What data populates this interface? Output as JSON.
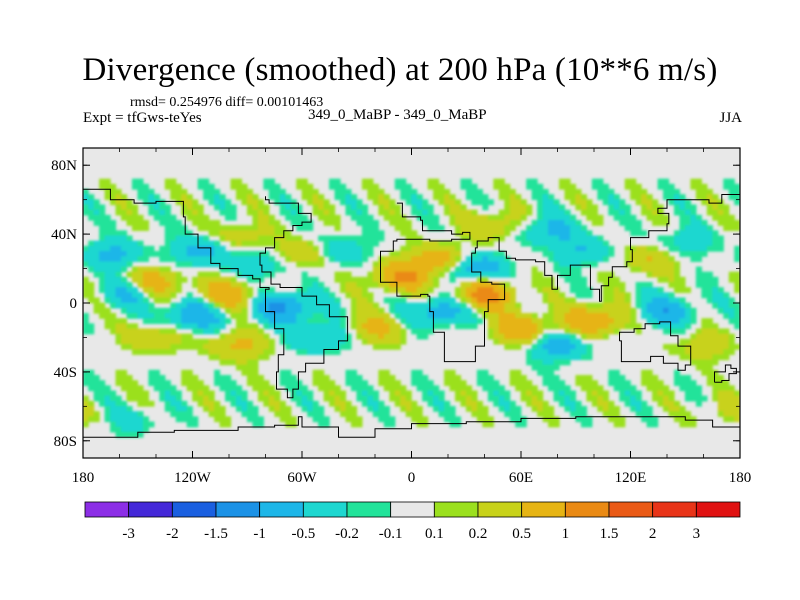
{
  "chart_data": {
    "type": "heatmap",
    "title": "Divergence (smoothed) at 200 hPa (10**6 m/s)",
    "stats_text": "rmsd= 0.254976 diff= 0.00101463",
    "experiment_text": "Expt = tfGws-teYes",
    "case_text": "349_0_MaBP - 349_0_MaBP",
    "season": "JJA",
    "units": "10**6 m/s",
    "xlim": [
      -180,
      180
    ],
    "ylim": [
      -90,
      90
    ],
    "x_ticks": [
      {
        "value": -180,
        "label": "180"
      },
      {
        "value": -120,
        "label": "120W"
      },
      {
        "value": -60,
        "label": "60W"
      },
      {
        "value": 0,
        "label": "0"
      },
      {
        "value": 60,
        "label": "60E"
      },
      {
        "value": 120,
        "label": "120E"
      },
      {
        "value": 180,
        "label": "180"
      }
    ],
    "y_ticks": [
      {
        "value": 80,
        "label": "80N"
      },
      {
        "value": 40,
        "label": "40N"
      },
      {
        "value": 0,
        "label": "0"
      },
      {
        "value": -40,
        "label": "40S"
      },
      {
        "value": -80,
        "label": "80S"
      }
    ],
    "colorbar": {
      "colors": [
        "#8c2ee6",
        "#4428d8",
        "#1a5fe0",
        "#1c92e6",
        "#1db6e8",
        "#1ed7d0",
        "#22e39a",
        "#e8e8e8",
        "#9be01e",
        "#c8d21a",
        "#e6b414",
        "#ea8a14",
        "#ea5a16",
        "#e83418",
        "#e01212"
      ],
      "labels": [
        "-3",
        "-2",
        "-1.5",
        "-1",
        "-0.5",
        "-0.2",
        "-0.1",
        "0.1",
        "0.2",
        "0.5",
        "1",
        "1.5",
        "2",
        "3"
      ]
    },
    "field_features": [
      {
        "lon": -163,
        "lat": 28,
        "value": -0.6
      },
      {
        "lon": -140,
        "lat": 12,
        "value": 0.7
      },
      {
        "lon": -155,
        "lat": 5,
        "value": -0.5
      },
      {
        "lon": -115,
        "lat": 30,
        "value": -0.7
      },
      {
        "lon": -95,
        "lat": 38,
        "value": 0.4
      },
      {
        "lon": -80,
        "lat": 22,
        "value": -0.5
      },
      {
        "lon": -60,
        "lat": 28,
        "value": 0.6
      },
      {
        "lon": -40,
        "lat": 30,
        "value": -0.5
      },
      {
        "lon": -100,
        "lat": 5,
        "value": 0.8
      },
      {
        "lon": -120,
        "lat": -8,
        "value": -0.9
      },
      {
        "lon": -70,
        "lat": -3,
        "value": -1.1
      },
      {
        "lon": -140,
        "lat": -20,
        "value": 0.5
      },
      {
        "lon": -95,
        "lat": -25,
        "value": 0.6
      },
      {
        "lon": -50,
        "lat": -20,
        "value": -0.6
      },
      {
        "lon": -20,
        "lat": -15,
        "value": 0.6
      },
      {
        "lon": -5,
        "lat": 15,
        "value": 1.0
      },
      {
        "lon": 15,
        "lat": 25,
        "value": 0.8
      },
      {
        "lon": 35,
        "lat": 20,
        "value": -0.9
      },
      {
        "lon": 40,
        "lat": 5,
        "value": 1.2
      },
      {
        "lon": 15,
        "lat": -5,
        "value": -0.8
      },
      {
        "lon": 60,
        "lat": -15,
        "value": 0.9
      },
      {
        "lon": 80,
        "lat": -25,
        "value": -0.7
      },
      {
        "lon": 100,
        "lat": -10,
        "value": 1.0
      },
      {
        "lon": 95,
        "lat": 30,
        "value": -0.5
      },
      {
        "lon": 130,
        "lat": 25,
        "value": 0.5
      },
      {
        "lon": 150,
        "lat": 35,
        "value": -0.4
      },
      {
        "lon": 140,
        "lat": -5,
        "value": -0.8
      },
      {
        "lon": 160,
        "lat": -25,
        "value": 0.4
      },
      {
        "lon": 45,
        "lat": 45,
        "value": 0.5
      },
      {
        "lon": 75,
        "lat": 42,
        "value": -0.6
      },
      {
        "lon": -150,
        "lat": -70,
        "value": -0.4
      },
      {
        "lon": -170,
        "lat": -80,
        "value": -0.3
      },
      {
        "lon": 170,
        "lat": -65,
        "value": 0.3
      }
    ],
    "coastlines": [
      [
        [
          -8,
          58
        ],
        [
          -5,
          50
        ],
        [
          5,
          48
        ],
        [
          6,
          42
        ],
        [
          22,
          40
        ],
        [
          28,
          41
        ],
        [
          32,
          37
        ],
        [
          22,
          36
        ],
        [
          10,
          37
        ],
        [
          -8,
          36
        ],
        [
          -10,
          30
        ],
        [
          -17,
          20
        ],
        [
          -17,
          12
        ],
        [
          -8,
          4
        ],
        [
          5,
          5
        ],
        [
          9,
          4
        ],
        [
          10,
          -5
        ],
        [
          12,
          -17
        ],
        [
          18,
          -34
        ],
        [
          27,
          -34
        ],
        [
          35,
          -25
        ],
        [
          40,
          -15
        ],
        [
          40,
          -5
        ],
        [
          42,
          2
        ],
        [
          51,
          11
        ],
        [
          44,
          12
        ],
        [
          38,
          18
        ],
        [
          33,
          29
        ],
        [
          35,
          32
        ],
        [
          36,
          36
        ],
        [
          42,
          38
        ],
        [
          48,
          30
        ],
        [
          52,
          26
        ],
        [
          57,
          25
        ],
        [
          62,
          25
        ],
        [
          68,
          24
        ],
        [
          73,
          16
        ],
        [
          77,
          8
        ],
        [
          80,
          13
        ],
        [
          80,
          16
        ],
        [
          87,
          22
        ],
        [
          92,
          22
        ],
        [
          98,
          16
        ],
        [
          98,
          8
        ],
        [
          103,
          1
        ],
        [
          104,
          10
        ],
        [
          108,
          15
        ],
        [
          110,
          21
        ],
        [
          118,
          24
        ],
        [
          121,
          31
        ],
        [
          120,
          38
        ],
        [
          127,
          38
        ],
        [
          130,
          42
        ],
        [
          140,
          46
        ],
        [
          141,
          52
        ],
        [
          135,
          55
        ],
        [
          140,
          60
        ],
        [
          155,
          60
        ],
        [
          163,
          58
        ],
        [
          170,
          63
        ],
        [
          180,
          66
        ]
      ],
      [
        [
          -180,
          66
        ],
        [
          -165,
          60
        ],
        [
          -152,
          58
        ],
        [
          -140,
          59
        ],
        [
          -125,
          50
        ],
        [
          -124,
          40
        ],
        [
          -117,
          32
        ],
        [
          -110,
          23
        ],
        [
          -105,
          20
        ],
        [
          -95,
          16
        ],
        [
          -87,
          14
        ],
        [
          -83,
          9
        ],
        [
          -78,
          8
        ],
        [
          -80,
          0
        ],
        [
          -80,
          -5
        ],
        [
          -75,
          -15
        ],
        [
          -70,
          -20
        ],
        [
          -70,
          -30
        ],
        [
          -73,
          -40
        ],
        [
          -74,
          -50
        ],
        [
          -68,
          -55
        ],
        [
          -65,
          -50
        ],
        [
          -62,
          -40
        ],
        [
          -58,
          -35
        ],
        [
          -48,
          -27
        ],
        [
          -40,
          -22
        ],
        [
          -35,
          -8
        ],
        [
          -45,
          -1
        ],
        [
          -52,
          4
        ],
        [
          -60,
          9
        ],
        [
          -72,
          11
        ],
        [
          -77,
          18
        ],
        [
          -82,
          22
        ],
        [
          -83,
          29
        ],
        [
          -80,
          32
        ],
        [
          -75,
          38
        ],
        [
          -70,
          42
        ],
        [
          -65,
          45
        ],
        [
          -60,
          47
        ],
        [
          -55,
          52
        ],
        [
          -62,
          58
        ],
        [
          -78,
          60
        ],
        [
          -80,
          62
        ]
      ],
      [
        [
          114,
          -22
        ],
        [
          115,
          -34
        ],
        [
          123,
          -34
        ],
        [
          131,
          -31
        ],
        [
          138,
          -35
        ],
        [
          146,
          -39
        ],
        [
          150,
          -36
        ],
        [
          153,
          -28
        ],
        [
          153,
          -25
        ],
        [
          146,
          -19
        ],
        [
          142,
          -11
        ],
        [
          136,
          -12
        ],
        [
          131,
          -12
        ],
        [
          128,
          -15
        ],
        [
          122,
          -17
        ],
        [
          114,
          -22
        ]
      ],
      [
        [
          166,
          -46
        ],
        [
          170,
          -45
        ],
        [
          174,
          -41
        ],
        [
          178,
          -38
        ],
        [
          175,
          -36
        ],
        [
          172,
          -40
        ],
        [
          166,
          -46
        ]
      ],
      [
        [
          -180,
          -78
        ],
        [
          -160,
          -78
        ],
        [
          -150,
          -75
        ],
        [
          -130,
          -74
        ],
        [
          -110,
          -74
        ],
        [
          -95,
          -72
        ],
        [
          -75,
          -71
        ],
        [
          -62,
          -66
        ],
        [
          -60,
          -72
        ],
        [
          -40,
          -78
        ],
        [
          -20,
          -73
        ],
        [
          0,
          -70
        ],
        [
          30,
          -69
        ],
        [
          60,
          -67
        ],
        [
          90,
          -66
        ],
        [
          120,
          -66
        ],
        [
          150,
          -68
        ],
        [
          165,
          -72
        ],
        [
          180,
          -75
        ]
      ]
    ]
  }
}
